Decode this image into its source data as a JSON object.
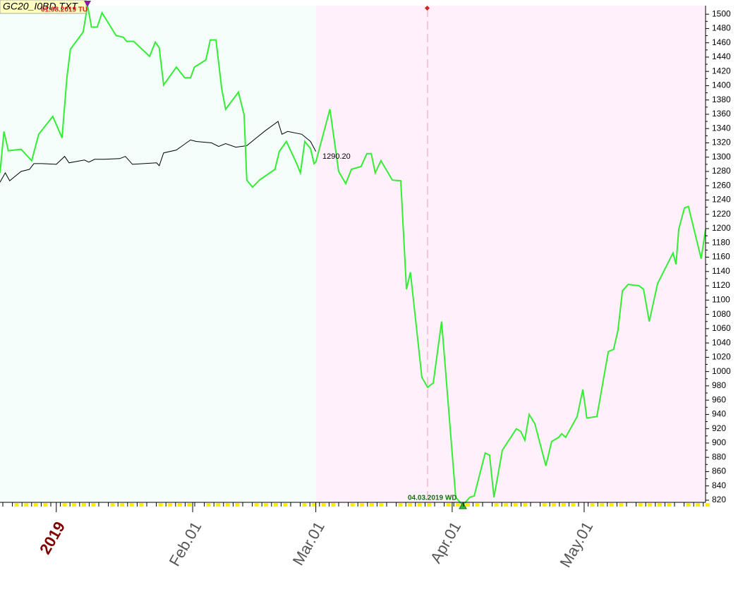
{
  "chart_data": {
    "type": "line",
    "title": "GC20_I0BD.TXT",
    "annotations": {
      "high": "01.08.2019 TU",
      "low": "04.03.2019 WD",
      "last": "1290.20"
    },
    "xlim": [
      -12.8,
      147.6
    ],
    "xticks": [
      {
        "value": 0,
        "label": "2019"
      },
      {
        "value": 31,
        "label": "Feb.01"
      },
      {
        "value": 59,
        "label": "Mar.01"
      },
      {
        "value": 90,
        "label": "Apr.01"
      },
      {
        "value": 120,
        "label": "May.01"
      }
    ],
    "ylim": [
      817,
      1512
    ],
    "yticks": [
      820,
      840,
      860,
      880,
      900,
      920,
      940,
      960,
      980,
      1000,
      1020,
      1040,
      1060,
      1080,
      1100,
      1120,
      1140,
      1160,
      1180,
      1200,
      1220,
      1240,
      1260,
      1280,
      1300,
      1320,
      1340,
      1360,
      1380,
      1400,
      1420,
      1440,
      1460,
      1480,
      1500
    ],
    "series": [
      {
        "name": "GC20_I0BD.TXT",
        "color": "#33ee33",
        "x": [
          -12.8,
          -11.9,
          -10.9,
          -8.0,
          -5.6,
          -4.0,
          -0.8,
          1.3,
          2.4,
          3.2,
          6.1,
          7.1,
          8.0,
          9.3,
          10.4,
          13.6,
          15.2,
          16.0,
          17.6,
          21.2,
          22.5,
          23.4,
          24.4,
          27.3,
          29.2,
          30.5,
          31.4,
          34.0,
          35.0,
          36.3,
          37.6,
          38.5,
          41.4,
          42.7,
          43.3,
          44.6,
          46.2,
          49.7,
          50.7,
          52.3,
          54.5,
          55.5,
          56.5,
          57.8,
          58.6,
          59.0,
          62.2,
          64.2,
          65.8,
          67.1,
          69.3,
          70.6,
          71.6,
          72.5,
          73.8,
          76.4,
          78.3,
          79.6,
          80.5,
          83.1,
          84.4,
          85.7,
          87.6,
          90.8,
          92.4,
          94.0,
          95.0,
          97.5,
          98.5,
          99.5,
          101.4,
          104.6,
          105.6,
          106.5,
          107.5,
          108.8,
          111.3,
          112.6,
          114.2,
          114.9,
          115.8,
          118.4,
          119.7,
          120.6,
          122.9,
          125.5,
          126.7,
          127.7,
          128.7,
          130.0,
          132.5,
          133.5,
          134.8,
          136.7,
          140.2,
          140.9,
          141.5,
          142.8,
          143.7,
          146.6,
          147.6
        ],
        "values": [
          1278,
          1336,
          1309,
          1311,
          1295,
          1332,
          1357,
          1327,
          1411,
          1451,
          1475,
          1512,
          1482,
          1482,
          1502,
          1470,
          1468,
          1462,
          1462,
          1441,
          1461,
          1453,
          1401,
          1426,
          1411,
          1411,
          1426,
          1436,
          1464,
          1464,
          1396,
          1367,
          1391,
          1359,
          1268,
          1258,
          1268,
          1283,
          1308,
          1322,
          1293,
          1278,
          1322,
          1312,
          1291,
          1293,
          1367,
          1280,
          1263,
          1283,
          1287,
          1305,
          1305,
          1278,
          1295,
          1268,
          1267,
          1115,
          1139,
          992,
          978,
          984,
          1070,
          824,
          813,
          824,
          826,
          886,
          883,
          824,
          890,
          920,
          916,
          904,
          940,
          927,
          868,
          902,
          908,
          913,
          908,
          937,
          975,
          935,
          937,
          1028,
          1031,
          1058,
          1113,
          1122,
          1120,
          1115,
          1070,
          1123,
          1166,
          1150,
          1199,
          1229,
          1231,
          1158,
          1199
        ]
      },
      {
        "name": "1290.20",
        "color": "#000000",
        "x": [
          -12.8,
          -11.6,
          -10.6,
          -8.0,
          -6.1,
          -5.1,
          -3.2,
          0,
          1.9,
          2.9,
          6.4,
          7.4,
          8.7,
          10.9,
          14.4,
          15.7,
          17.3,
          22.8,
          23.4,
          24.4,
          27.3,
          28.2,
          30.5,
          31.8,
          35.3,
          36.9,
          38.5,
          40.8,
          43.3,
          44.9,
          47.5,
          50.4,
          51.3,
          52.6,
          55.8,
          57.8,
          59.0
        ],
        "values": [
          1265,
          1278,
          1267,
          1280,
          1283,
          1291,
          1291,
          1290,
          1301,
          1292,
          1296,
          1293,
          1297,
          1297,
          1298,
          1301,
          1290,
          1292,
          1288,
          1306,
          1310,
          1314,
          1324,
          1322,
          1320,
          1315,
          1319,
          1314,
          1316,
          1324,
          1337,
          1350,
          1332,
          1336,
          1332,
          1322,
          1308
        ]
      }
    ]
  }
}
